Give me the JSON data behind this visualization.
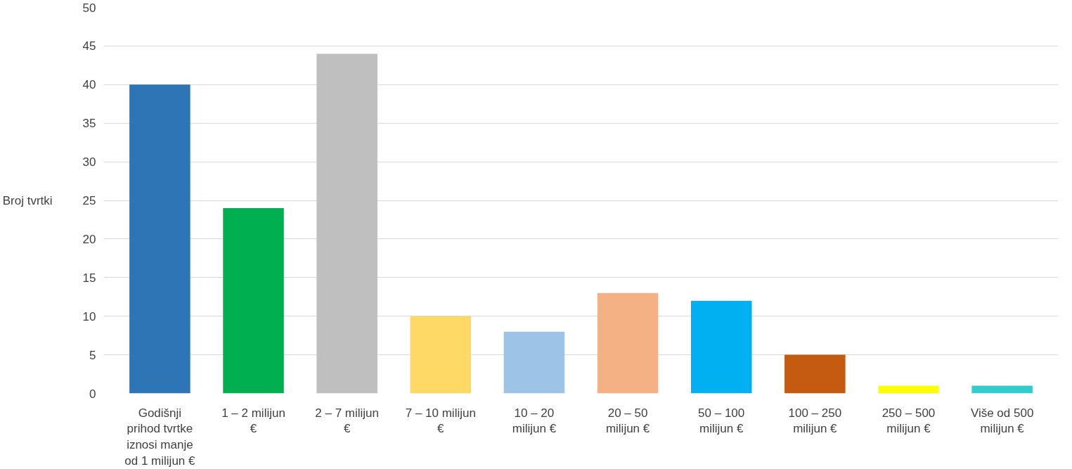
{
  "chart_data": {
    "type": "bar",
    "ylabel": "Broj tvrtki",
    "categories": [
      "Godišnji prihod tvrtke iznosi manje od 1 milijun €",
      "1 – 2 milijun €",
      "2 – 7 milijun €",
      "7 – 10 milijun €",
      "10 – 20 milijun €",
      "20 – 50 milijun €",
      "50 – 100 milijun €",
      "100 – 250 milijun €",
      "250 – 500 milijun €",
      "Više od 500 milijun €"
    ],
    "values": [
      40,
      24,
      44,
      10,
      8,
      13,
      12,
      5,
      1,
      1
    ],
    "colors": [
      "#2e75b6",
      "#00b050",
      "#bfbfbf",
      "#ffd966",
      "#9dc3e6",
      "#f4b183",
      "#00b0f0",
      "#c55a11",
      "#ffff00",
      "#33cccc"
    ],
    "ylim": [
      0,
      50
    ],
    "yticks": [
      0,
      5,
      10,
      15,
      20,
      25,
      30,
      35,
      40,
      45,
      50
    ],
    "grid": "y"
  }
}
